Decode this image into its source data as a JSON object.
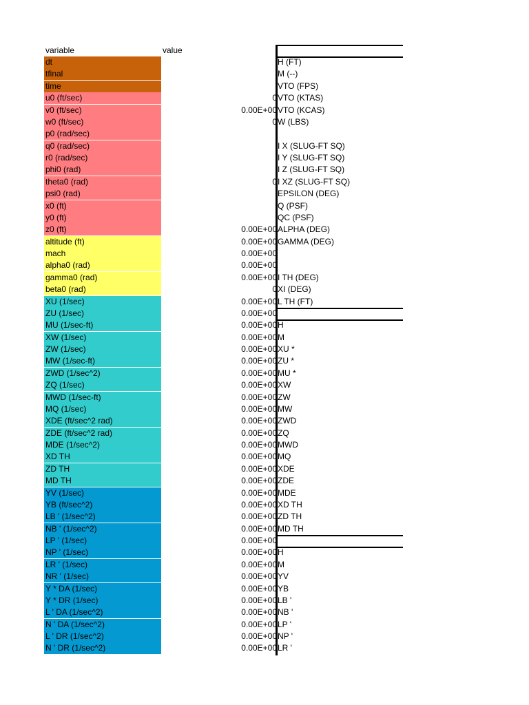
{
  "header": {
    "variable": "variable",
    "value": "value"
  },
  "colors": {
    "time": "#c8620a",
    "initial": "#ff7c80",
    "flight": "#ffff66",
    "longitudinal": "#33cccc",
    "lateral": "#0499d0"
  },
  "rows": [
    {
      "label": "dt",
      "value": "",
      "right": "H (FT)",
      "group": "time"
    },
    {
      "label": "tfinal",
      "value": "",
      "right": "M (--)",
      "group": "time"
    },
    {
      "label": "time",
      "value": "",
      "right": "VTO (FPS)",
      "group": "time"
    },
    {
      "label": "u0 (ft/sec)",
      "value": "0",
      "right": "VTO (KTAS)",
      "group": "initial"
    },
    {
      "label": "v0 (ft/sec)",
      "value": "0.00E+00",
      "right": "VTO (KCAS)",
      "group": "initial"
    },
    {
      "label": "w0 (ft/sec)",
      "value": "0",
      "right": "W (LBS)",
      "group": "initial"
    },
    {
      "label": "p0  (rad/sec)",
      "value": "",
      "right": "",
      "group": "initial"
    },
    {
      "label": "q0  (rad/sec)",
      "value": "",
      "right": "I X (SLUG-FT SQ)",
      "group": "initial"
    },
    {
      "label": "r0 (rad/sec)",
      "value": "",
      "right": "I Y (SLUG-FT SQ)",
      "group": "initial"
    },
    {
      "label": "phi0 (rad)",
      "value": "",
      "right": "I Z (SLUG-FT SQ)",
      "group": "initial"
    },
    {
      "label": "theta0 (rad)",
      "value": "0",
      "right": "I XZ (SLUG-FT SQ)",
      "group": "initial"
    },
    {
      "label": "psi0  (rad)",
      "value": "",
      "right": "EPSILON (DEG)",
      "group": "initial"
    },
    {
      "label": "x0 (ft)",
      "value": "",
      "right": "Q (PSF)",
      "group": "initial"
    },
    {
      "label": "y0 (ft)",
      "value": "",
      "right": "QC (PSF)",
      "group": "initial"
    },
    {
      "label": "z0 (ft)",
      "value": "0.00E+00",
      "right": "ALPHA (DEG)",
      "group": "initial"
    },
    {
      "label": "altitude (ft)",
      "value": "0.00E+00",
      "right": "GAMMA (DEG)",
      "group": "flight"
    },
    {
      "label": "mach",
      "value": "0.00E+00",
      "right": "",
      "group": "flight"
    },
    {
      "label": "alpha0 (rad)",
      "value": "0.00E+00",
      "right": "",
      "group": "flight"
    },
    {
      "label": "gamma0 (rad)",
      "value": "0.00E+00",
      "right": "I TH (DEG)",
      "group": "flight"
    },
    {
      "label": "beta0 (rad)",
      "value": "0",
      "right": "XI (DEG)",
      "group": "flight"
    },
    {
      "label": "XU (1/sec)",
      "value": "0.00E+00",
      "right": "L TH (FT)",
      "group": "longitudinal"
    },
    {
      "label": "ZU (1/sec)",
      "value": "0.00E+00",
      "right": "",
      "group": "longitudinal"
    },
    {
      "label": "MU (1/sec-ft)",
      "value": "0.00E+00",
      "right": "H",
      "group": "longitudinal"
    },
    {
      "label": "XW (1/sec)",
      "value": "0.00E+00",
      "right": "M",
      "group": "longitudinal"
    },
    {
      "label": "ZW (1/sec)",
      "value": "0.00E+00",
      "right": "XU  *",
      "group": "longitudinal"
    },
    {
      "label": "MW (1/sec-ft)",
      "value": "0.00E+00",
      "right": "ZU  *",
      "group": "longitudinal"
    },
    {
      "label": "ZWD (1/sec^2)",
      "value": "0.00E+00",
      "right": "MU  *",
      "group": "longitudinal"
    },
    {
      "label": "ZQ (1/sec)",
      "value": "0.00E+00",
      "right": "XW",
      "group": "longitudinal"
    },
    {
      "label": "MWD (1/sec-ft)",
      "value": "0.00E+00",
      "right": "ZW",
      "group": "longitudinal"
    },
    {
      "label": "MQ (1/sec)",
      "value": "0.00E+00",
      "right": "MW",
      "group": "longitudinal"
    },
    {
      "label": "XDE (ft/sec^2 rad)",
      "value": "0.00E+00",
      "right": "ZWD",
      "group": "longitudinal"
    },
    {
      "label": "ZDE (ft/sec^2 rad)",
      "value": "0.00E+00",
      "right": "ZQ",
      "group": "longitudinal"
    },
    {
      "label": "MDE (1/sec^2)",
      "value": "0.00E+00",
      "right": "MWD",
      "group": "longitudinal"
    },
    {
      "label": "XD TH",
      "value": "0.00E+00",
      "right": "MQ",
      "group": "longitudinal"
    },
    {
      "label": "ZD TH",
      "value": "0.00E+00",
      "right": "XDE",
      "group": "longitudinal"
    },
    {
      "label": "MD TH",
      "value": "0.00E+00",
      "right": "ZDE",
      "group": "longitudinal"
    },
    {
      "label": "YV (1/sec)",
      "value": "0.00E+00",
      "right": "MDE",
      "group": "lateral"
    },
    {
      "label": "YB (ft/sec^2)",
      "value": "0.00E+00",
      "right": "XD TH",
      "group": "lateral"
    },
    {
      "label": "LB ' (1/sec^2)",
      "value": "0.00E+00",
      "right": "ZD TH",
      "group": "lateral"
    },
    {
      "label": "NB ' (1/sec^2)",
      "value": "0.00E+00",
      "right": "MD TH",
      "group": "lateral"
    },
    {
      "label": "LP ' (1/sec)",
      "value": "0.00E+00",
      "right": "",
      "group": "lateral"
    },
    {
      "label": "NP ' (1/sec)",
      "value": "0.00E+00",
      "right": "H",
      "group": "lateral"
    },
    {
      "label": "LR ' (1/sec)",
      "value": "0.00E+00",
      "right": "M",
      "group": "lateral"
    },
    {
      "label": "NR ' (1/sec)",
      "value": "0.00E+00",
      "right": "YV",
      "group": "lateral"
    },
    {
      "label": "Y * DA (1/sec)",
      "value": "0.00E+00",
      "right": "YB",
      "group": "lateral"
    },
    {
      "label": "Y * DR (1/sec)",
      "value": "0.00E+00",
      "right": "LB '",
      "group": "lateral"
    },
    {
      "label": "L ' DA (1/sec^2)",
      "value": "0.00E+00",
      "right": "NB '",
      "group": "lateral"
    },
    {
      "label": "N ' DA (1/sec^2)",
      "value": "0.00E+00",
      "right": "LP '",
      "group": "lateral"
    },
    {
      "label": "L ' DR (1/sec^2)",
      "value": "0.00E+00",
      "right": "NP '",
      "group": "lateral"
    },
    {
      "label": "N ' DR (1/sec^2)",
      "value": "0.00E+00",
      "right": "LR '",
      "group": "lateral"
    }
  ]
}
